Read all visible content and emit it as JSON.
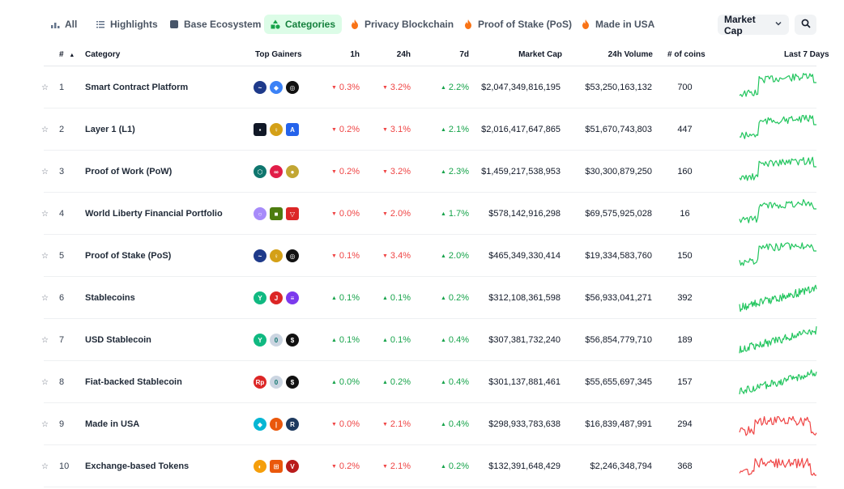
{
  "filters": {
    "tabs": [
      {
        "label": "All",
        "icon": "bar-chart-icon",
        "active": false
      },
      {
        "label": "Highlights",
        "icon": "list-icon",
        "active": false
      },
      {
        "label": "Base Ecosystem",
        "icon": "base-logo-icon",
        "active": false
      },
      {
        "label": "Categories",
        "icon": "shapes-icon",
        "active": true
      },
      {
        "label": "Privacy Blockchain",
        "icon": "fire-icon",
        "active": false
      },
      {
        "label": "Proof of Stake (PoS)",
        "icon": "fire-icon",
        "active": false
      },
      {
        "label": "Made in USA",
        "icon": "fire-icon",
        "active": false
      }
    ],
    "sort_select": {
      "value": "Market Cap",
      "icon": "chevron-down-icon"
    },
    "search_icon": "search-icon"
  },
  "colors": {
    "accent": "#16a34a",
    "negative": "#ef4444",
    "active_tab_bg": "#dcfce7"
  },
  "table": {
    "headers": {
      "rank": "#",
      "category": "Category",
      "top_gainers": "Top Gainers",
      "h1": "1h",
      "h24": "24h",
      "d7": "7d",
      "market_cap": "Market Cap",
      "volume": "24h Volume",
      "coins": "# of coins",
      "last7": "Last 7 Days"
    },
    "rows": [
      {
        "rank": "1",
        "category": "Smart Contract Platform",
        "h1": "0.3%",
        "h1_dir": "down",
        "h24": "3.2%",
        "h24_dir": "down",
        "d7": "2.2%",
        "d7_dir": "up",
        "market_cap": "$2,047,349,816,195",
        "volume": "$53,250,163,132",
        "coins": "700",
        "trend": "up",
        "gainers": [
          {
            "name": "blue-swirl-coin-icon",
            "color": "#1e3a8a"
          },
          {
            "name": "ens-coin-icon",
            "color": "#3b82f6"
          },
          {
            "name": "ring-coin-icon",
            "color": "#111111"
          }
        ]
      },
      {
        "rank": "2",
        "category": "Layer 1 (L1)",
        "h1": "0.2%",
        "h1_dir": "down",
        "h24": "3.1%",
        "h24_dir": "down",
        "d7": "2.1%",
        "d7_dir": "up",
        "market_cap": "$2,016,417,647,865",
        "volume": "$51,670,743,803",
        "coins": "447",
        "trend": "up",
        "gainers": [
          {
            "name": "dark-square-coin-icon",
            "color": "#111827"
          },
          {
            "name": "gold-coin-icon",
            "color": "#d4a017"
          },
          {
            "name": "arrow-blue-coin-icon",
            "color": "#2563eb"
          }
        ]
      },
      {
        "rank": "3",
        "category": "Proof of Work (PoW)",
        "h1": "0.2%",
        "h1_dir": "down",
        "h24": "3.2%",
        "h24_dir": "down",
        "d7": "2.3%",
        "d7_dir": "up",
        "market_cap": "$1,459,217,538,953",
        "volume": "$30,300,879,250",
        "coins": "160",
        "trend": "up",
        "gainers": [
          {
            "name": "hex-teal-coin-icon",
            "color": "#0f766e"
          },
          {
            "name": "infinity-pink-coin-icon",
            "color": "#e11d48"
          },
          {
            "name": "doge-coin-icon",
            "color": "#c2a633"
          }
        ]
      },
      {
        "rank": "4",
        "category": "World Liberty Financial Portfolio",
        "h1": "0.0%",
        "h1_dir": "down",
        "h24": "2.0%",
        "h24_dir": "down",
        "d7": "1.7%",
        "d7_dir": "up",
        "market_cap": "$578,142,916,298",
        "volume": "$69,575,925,028",
        "coins": "16",
        "trend": "up",
        "gainers": [
          {
            "name": "purple-ghost-coin-icon",
            "color": "#a78bfa"
          },
          {
            "name": "green-square-coin-icon",
            "color": "#4d7c0f"
          },
          {
            "name": "tron-coin-icon",
            "color": "#dc2626"
          }
        ]
      },
      {
        "rank": "5",
        "category": "Proof of Stake (PoS)",
        "h1": "0.1%",
        "h1_dir": "down",
        "h24": "3.4%",
        "h24_dir": "down",
        "d7": "2.0%",
        "d7_dir": "up",
        "market_cap": "$465,349,330,414",
        "volume": "$19,334,583,760",
        "coins": "150",
        "trend": "up",
        "gainers": [
          {
            "name": "blue-swirl-coin-icon",
            "color": "#1e3a8a"
          },
          {
            "name": "gold-coin-icon",
            "color": "#d4a017"
          },
          {
            "name": "ring-coin-icon",
            "color": "#111111"
          }
        ]
      },
      {
        "rank": "6",
        "category": "Stablecoins",
        "h1": "0.1%",
        "h1_dir": "up",
        "h24": "0.1%",
        "h24_dir": "up",
        "d7": "0.2%",
        "d7_dir": "up",
        "market_cap": "$312,108,361,598",
        "volume": "$56,933,041,271",
        "coins": "392",
        "trend": "noisy",
        "gainers": [
          {
            "name": "teal-y-coin-icon",
            "color": "#10b981"
          },
          {
            "name": "red-j-coin-icon",
            "color": "#dc2626"
          },
          {
            "name": "ena-coin-icon",
            "color": "#7c3aed"
          }
        ]
      },
      {
        "rank": "7",
        "category": "USD Stablecoin",
        "h1": "0.1%",
        "h1_dir": "up",
        "h24": "0.1%",
        "h24_dir": "up",
        "d7": "0.4%",
        "d7_dir": "up",
        "market_cap": "$307,381,732,240",
        "volume": "$56,854,779,710",
        "coins": "189",
        "trend": "noisy",
        "gainers": [
          {
            "name": "teal-y-coin-icon",
            "color": "#10b981"
          },
          {
            "name": "usd0-coin-icon",
            "color": "#cbd5e1"
          },
          {
            "name": "dollar-black-coin-icon",
            "color": "#111111"
          }
        ]
      },
      {
        "rank": "8",
        "category": "Fiat-backed Stablecoin",
        "h1": "0.0%",
        "h1_dir": "up",
        "h24": "0.2%",
        "h24_dir": "up",
        "d7": "0.4%",
        "d7_dir": "up",
        "market_cap": "$301,137,881,461",
        "volume": "$55,655,697,345",
        "coins": "157",
        "trend": "noisy",
        "gainers": [
          {
            "name": "rp-red-coin-icon",
            "color": "#dc2626"
          },
          {
            "name": "usd0-coin-icon",
            "color": "#cbd5e1"
          },
          {
            "name": "dollar-black-coin-icon",
            "color": "#111111"
          }
        ]
      },
      {
        "rank": "9",
        "category": "Made in USA",
        "h1": "0.0%",
        "h1_dir": "down",
        "h24": "2.1%",
        "h24_dir": "down",
        "d7": "0.4%",
        "d7_dir": "up",
        "market_cap": "$298,933,783,638",
        "volume": "$16,839,487,991",
        "coins": "294",
        "trend": "red",
        "gainers": [
          {
            "name": "cyan-logo-coin-icon",
            "color": "#06b6d4"
          },
          {
            "name": "orange-coin-icon",
            "color": "#ea580c"
          },
          {
            "name": "navy-r-coin-icon",
            "color": "#1e3a5f"
          }
        ]
      },
      {
        "rank": "10",
        "category": "Exchange-based Tokens",
        "h1": "0.2%",
        "h1_dir": "down",
        "h24": "2.1%",
        "h24_dir": "down",
        "d7": "0.2%",
        "d7_dir": "up",
        "market_cap": "$132,391,648,429",
        "volume": "$2,246,348,794",
        "coins": "368",
        "trend": "red",
        "gainers": [
          {
            "name": "rainbow-coin-icon",
            "color": "#f59e0b"
          },
          {
            "name": "orange-square-coin-icon",
            "color": "#ea580c"
          },
          {
            "name": "red-v-coin-icon",
            "color": "#b91c1c"
          }
        ]
      }
    ]
  }
}
